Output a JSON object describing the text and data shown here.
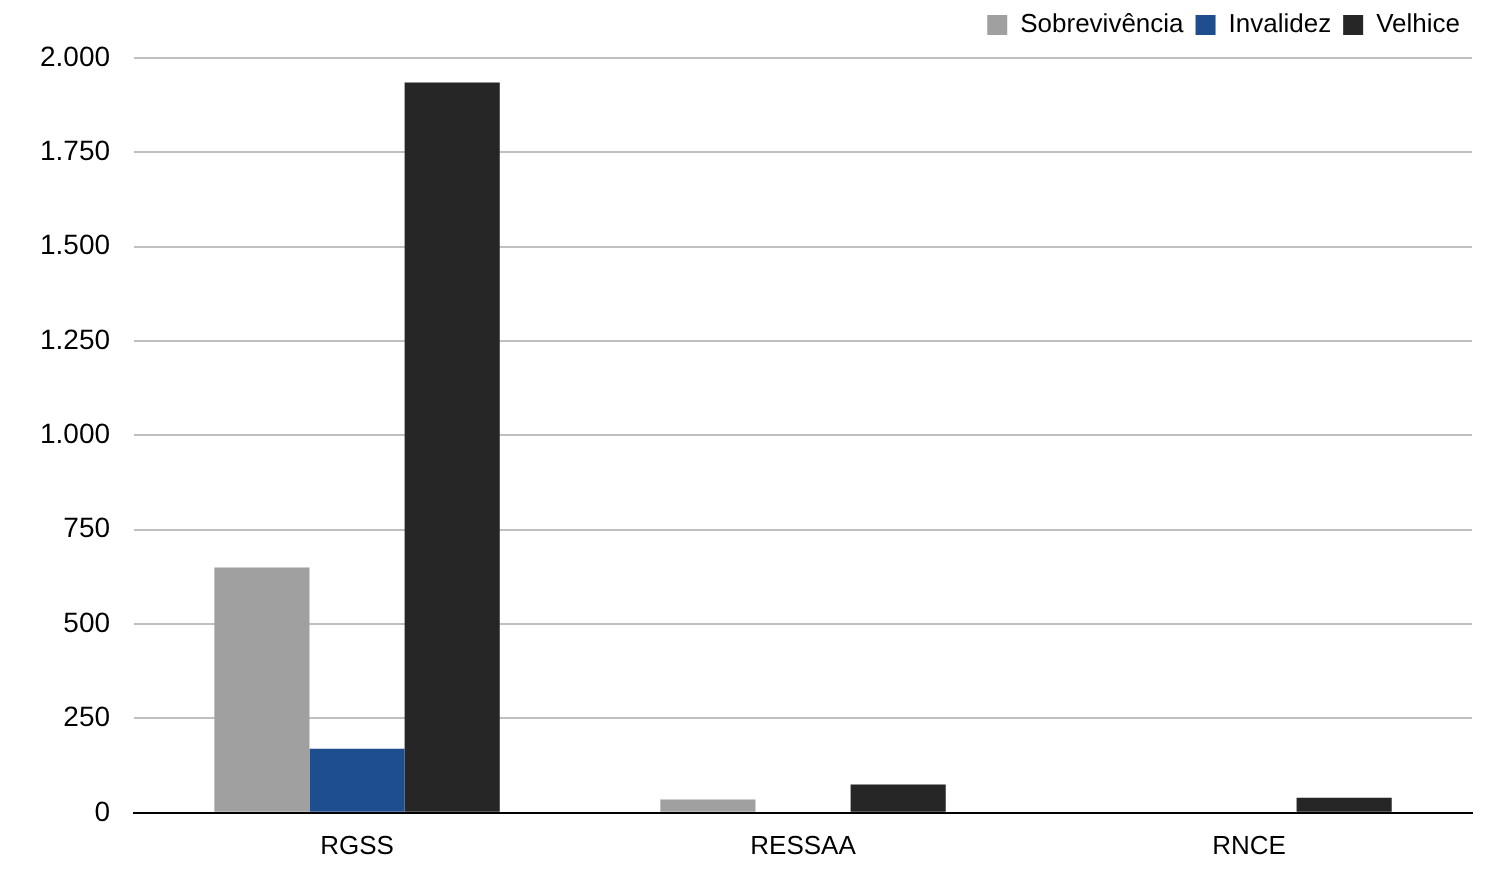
{
  "chart_data": {
    "type": "bar",
    "categories": [
      "RGSS",
      "RESSAA",
      "RNCE"
    ],
    "series": [
      {
        "name": "Sobrevivência",
        "color": "#a0a0a0",
        "values": [
          650,
          35,
          0
        ]
      },
      {
        "name": "Invalidez",
        "color": "#1f4e8f",
        "values": [
          170,
          0,
          0
        ]
      },
      {
        "name": "Velhice",
        "color": "#262626",
        "values": [
          1935,
          75,
          40
        ]
      }
    ],
    "ylim": [
      0,
      2000
    ],
    "yticks": [
      {
        "value": 0,
        "label": "0"
      },
      {
        "value": 250,
        "label": "250"
      },
      {
        "value": 500,
        "label": "500"
      },
      {
        "value": 750,
        "label": "750"
      },
      {
        "value": 1000,
        "label": "1.000"
      },
      {
        "value": 1250,
        "label": "1.250"
      },
      {
        "value": 1500,
        "label": "1.500"
      },
      {
        "value": 1750,
        "label": "1.750"
      },
      {
        "value": 2000,
        "label": "2.000"
      }
    ],
    "grid": "y",
    "legend": "top right"
  }
}
